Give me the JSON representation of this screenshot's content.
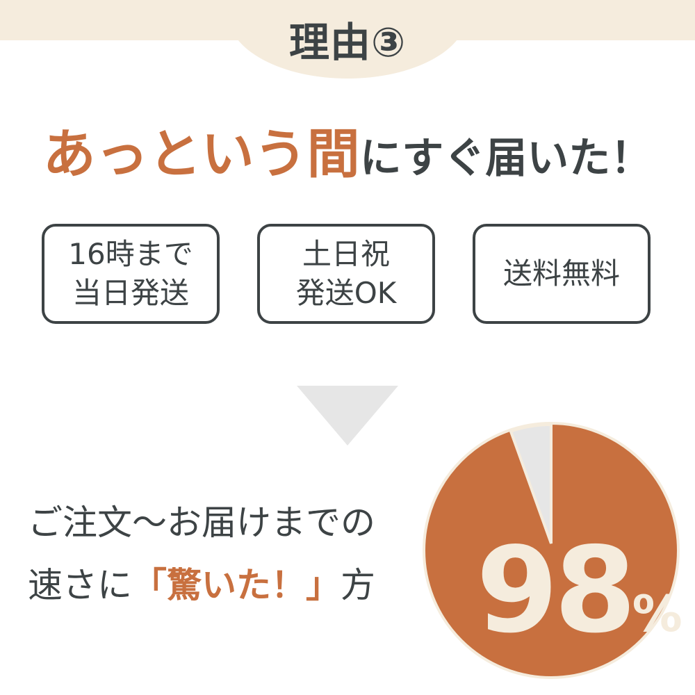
{
  "header": {
    "reason_label": "理由③"
  },
  "headline": {
    "emphasis": "あっという間",
    "rest": "にすぐ届いた！"
  },
  "features": [
    {
      "line1": "16時まで",
      "line2": "当日発送"
    },
    {
      "line1": "土日祝",
      "line2": "発送OK"
    },
    {
      "line1": "送料無料",
      "line2": ""
    }
  ],
  "statement": {
    "line1": "ご注文〜お届けまでの",
    "line2_prefix": "速さに",
    "line2_highlight": "「驚いた！」",
    "line2_suffix": "方"
  },
  "pie": {
    "percent": 98,
    "number": "98",
    "unit": "%"
  },
  "colors": {
    "accent": "#c8703f",
    "text": "#3d4345",
    "cream": "#f5ecdd",
    "gray": "#e6e6e6"
  }
}
